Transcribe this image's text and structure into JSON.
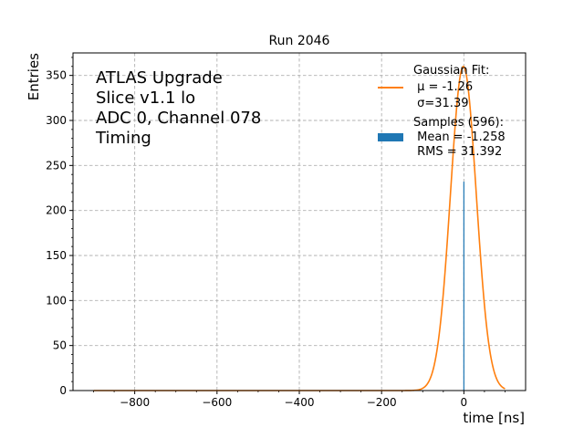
{
  "chart_data": {
    "type": "histogram+line",
    "title": "Run 2046",
    "xlabel": "time [ns]",
    "ylabel": "Entries",
    "xlim": [
      -950,
      150
    ],
    "ylim": [
      0,
      375
    ],
    "xticks": [
      -800,
      -600,
      -400,
      -200,
      0
    ],
    "xtick_labels": [
      "−800",
      "−600",
      "−400",
      "−200",
      "0"
    ],
    "yticks": [
      0,
      50,
      100,
      150,
      200,
      250,
      300,
      350
    ],
    "ytick_labels": [
      "0",
      "50",
      "100",
      "150",
      "200",
      "250",
      "300",
      "350"
    ],
    "grid": true,
    "annotation_lines": [
      "ATLAS Upgrade",
      "Slice v1.1 lo",
      "ADC 0, Channel 078",
      "Timing"
    ],
    "fit": {
      "name": "Gaussian Fit",
      "mu": -1.26,
      "sigma": 31.39,
      "amplitude": 360,
      "x_range": [
        -900,
        100
      ],
      "color": "#ff7f0e"
    },
    "histogram": {
      "name": "Samples",
      "count": 596,
      "mean": -1.258,
      "rms": 31.392,
      "color": "#1f77b4",
      "bins": [
        {
          "x": 0,
          "value": 232
        }
      ]
    },
    "legend": {
      "placement": "top-right",
      "fit_title": "Gaussian Fit:",
      "fit_mu": " μ = -1.26",
      "fit_sigma": " σ=31.39",
      "samples_title": "Samples (596):",
      "samples_mean": " Mean = -1.258",
      "samples_rms": " RMS = 31.392"
    }
  }
}
